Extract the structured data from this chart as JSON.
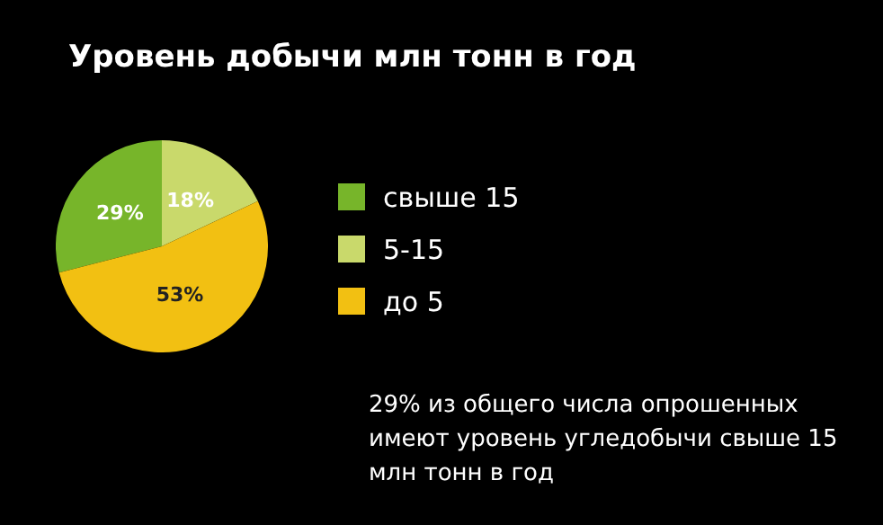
{
  "chart_data": {
    "type": "pie",
    "title": "Уровень добычи млн тонн в год",
    "categories": [
      "свыше 15",
      "5-15",
      "до 5"
    ],
    "values": [
      29,
      18,
      53
    ],
    "colors": [
      "#77b52a",
      "#c9d96b",
      "#f2c012"
    ],
    "value_labels": [
      "29%",
      "18%",
      "53%"
    ],
    "legend": "right",
    "annotations": [
      "29% из общего числа опрошенных имеют уровень угледобычи свыше 15 млн тонн в год"
    ]
  }
}
